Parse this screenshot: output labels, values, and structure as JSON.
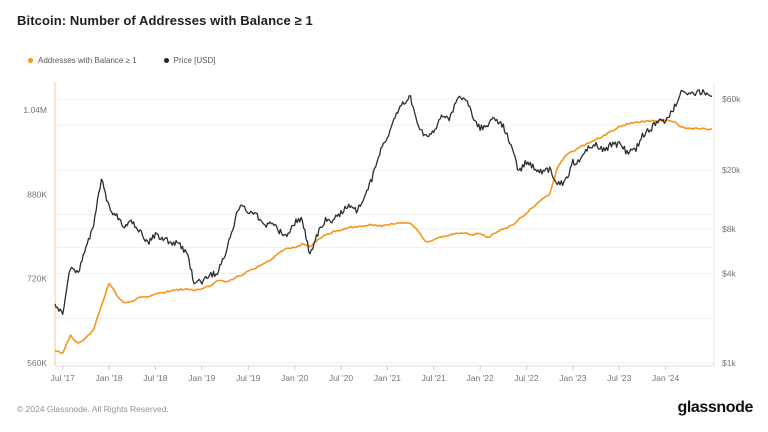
{
  "title": "Bitcoin: Number of Addresses with Balance ≥ 1",
  "legend": {
    "items": [
      {
        "label": "Addresses with Balance ≥ 1",
        "color": "#f7941a"
      },
      {
        "label": "Price [USD]",
        "color": "#262626"
      }
    ]
  },
  "footer": {
    "copyright": "© 2024 Glassnode. All Rights Reserved.",
    "logo": "glassnode"
  },
  "colors": {
    "addresses_line": "#f7941a",
    "price_line": "#2d2d2d",
    "gridline": "#f0f0f0",
    "axis_line": "#dddddd",
    "left_axis_line": "rgba(247,148,26,0.5)",
    "right_axis_line": "#e7e7e7",
    "tick": "#cccccc",
    "tick_text": "#757575"
  },
  "chart_data": {
    "type": "line",
    "title": "Bitcoin: Number of Addresses with Balance ≥ 1",
    "x_interval": "monthly",
    "x_start": "2017-06",
    "x_end": "2024-07",
    "x_tick_labels": [
      "Jul '17",
      "Jan '18",
      "Jul '18",
      "Jan '19",
      "Jul '19",
      "Jan '20",
      "Jul '20",
      "Jan '21",
      "Jul '21",
      "Jan '22",
      "Jul '22",
      "Jan '23",
      "Jul '23",
      "Jan '24"
    ],
    "left_axis": {
      "scale": "linear",
      "labels": [
        "1.04M",
        "880K",
        "720K",
        "560K"
      ],
      "values": [
        1040000,
        880000,
        720000,
        560000
      ],
      "range": [
        546000,
        1095000
      ]
    },
    "right_axis": {
      "scale": "log",
      "labels": [
        "$60k",
        "$20k",
        "$8k",
        "$4k",
        "$1k"
      ],
      "values": [
        60000,
        20000,
        8000,
        4000,
        1000
      ],
      "gridline_values": [
        60000,
        40000,
        20000,
        10000,
        8000,
        6000,
        4000,
        2000,
        1000
      ],
      "range": [
        950,
        83000
      ]
    },
    "series": [
      {
        "name": "Addresses with Balance ≥ 1",
        "axis": "left",
        "color": "#f7941a",
        "values": [
          583000,
          578000,
          612000,
          598000,
          607000,
          625000,
          668000,
          712000,
          688000,
          674000,
          678000,
          684000,
          686000,
          690000,
          694000,
          697000,
          699000,
          701000,
          697000,
          701000,
          706000,
          717000,
          714000,
          719000,
          726000,
          734000,
          741000,
          748000,
          756000,
          770000,
          777000,
          780000,
          785000,
          782000,
          794000,
          803000,
          809000,
          812000,
          817000,
          819000,
          821000,
          822000,
          820000,
          822000,
          824000,
          825000,
          826000,
          810000,
          790000,
          793000,
          799000,
          803000,
          806000,
          807000,
          804000,
          806000,
          797000,
          808000,
          814000,
          820000,
          832000,
          845000,
          858000,
          872000,
          880000,
          930000,
          953000,
          962000,
          970000,
          977000,
          984000,
          991000,
          1000000,
          1008000,
          1013000,
          1016000,
          1018000,
          1019000,
          1020000,
          1020000,
          1019000,
          1008000,
          1006000,
          1005000,
          1004000,
          1004000
        ]
      },
      {
        "name": "Price [USD]",
        "axis": "right",
        "color": "#2d2d2d",
        "values": [
          2500,
          2100,
          4400,
          4100,
          5900,
          8800,
          17500,
          11200,
          9800,
          8300,
          8900,
          7600,
          6500,
          7400,
          6800,
          6500,
          6400,
          5600,
          3500,
          3500,
          3850,
          4100,
          5300,
          8200,
          12000,
          10500,
          10100,
          8500,
          8800,
          7800,
          7200,
          8800,
          9300,
          5300,
          7500,
          9400,
          9200,
          10200,
          11700,
          10700,
          13000,
          17500,
          26000,
          33000,
          46000,
          57000,
          61000,
          38000,
          34000,
          37000,
          46000,
          44000,
          60000,
          63000,
          47000,
          38000,
          40000,
          45000,
          39000,
          30000,
          19500,
          22500,
          20500,
          19200,
          20200,
          16200,
          16600,
          22500,
          23500,
          28000,
          29500,
          27000,
          30000,
          29500,
          26500,
          26800,
          34000,
          37500,
          42500,
          42500,
          51000,
          69000,
          64000,
          67000,
          66000,
          63000
        ]
      }
    ]
  }
}
